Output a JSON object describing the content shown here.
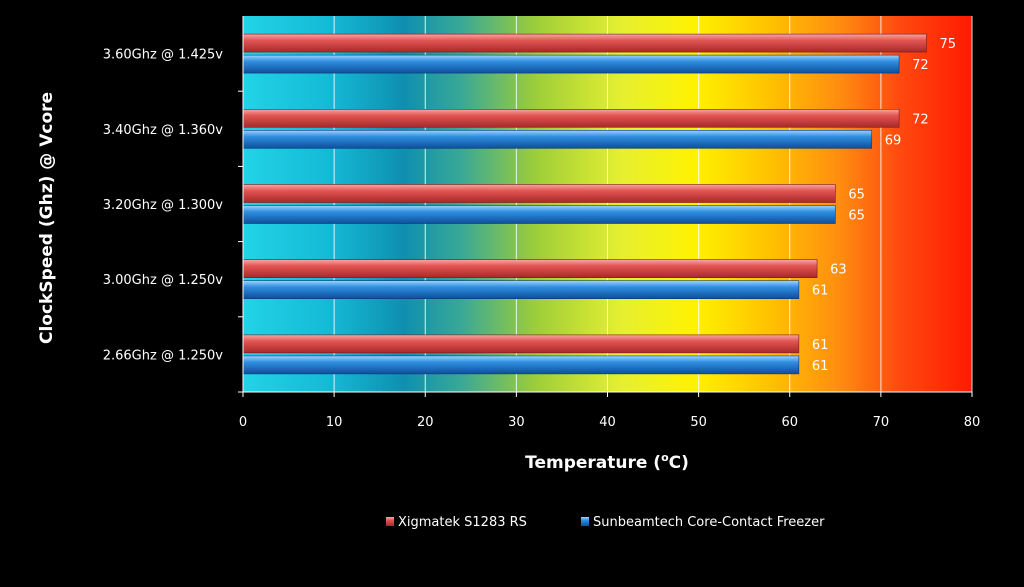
{
  "chart_data": {
    "type": "bar",
    "orientation": "horizontal",
    "categories": [
      "3.60Ghz @ 1.425v",
      "3.40Ghz @ 1.360v",
      "3.20Ghz @ 1.300v",
      "3.00Ghz @ 1.250v",
      "2.66Ghz @ 1.250v"
    ],
    "series": [
      {
        "name": "Xigmatek S1283 RS",
        "color": "#e8484a",
        "values": [
          75,
          72,
          65,
          63,
          61
        ]
      },
      {
        "name": "Sunbeamtech Core-Contact Freezer",
        "color": "#2f8fe0",
        "values": [
          72,
          69,
          65,
          61,
          61
        ]
      }
    ],
    "xlabel_prefix": "Temperature (",
    "xlabel_unit": "o",
    "xlabel_suffix": "C)",
    "ylabel": "ClockSpeed (Ghz) @ Vcore",
    "xlim": [
      0,
      80
    ],
    "xticks": [
      0,
      10,
      20,
      30,
      40,
      50,
      60,
      70,
      80
    ],
    "grid": true,
    "legend_position": "bottom",
    "background": "gradient cyan-to-red"
  }
}
